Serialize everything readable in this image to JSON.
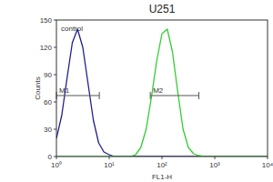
{
  "chart_data": {
    "type": "line",
    "title": "U251",
    "x_label": "FL1-H",
    "y_label": "Counts",
    "annotation": "control",
    "log": "x",
    "x": [
      1,
      1.26,
      1.58,
      2,
      2.51,
      3.16,
      3.98,
      5.01,
      6.31,
      7.94,
      10,
      12.6,
      15.8,
      20,
      25.1,
      31.6,
      39.8,
      50.1,
      63.1,
      79.4,
      100,
      126,
      158,
      200,
      251,
      316,
      398,
      501,
      631,
      794,
      1000,
      10000
    ],
    "series": [
      {
        "name": "control",
        "color": "#1f1f8f",
        "values": [
          20,
          45,
          85,
          125,
          140,
          120,
          80,
          40,
          15,
          5,
          2,
          0,
          0,
          0,
          0,
          0,
          0,
          0,
          0,
          0,
          0,
          0,
          0,
          0,
          0,
          0,
          0,
          0,
          0,
          0,
          0,
          0
        ]
      },
      {
        "name": "U251",
        "color": "#33cc33",
        "values": [
          0,
          0,
          0,
          0,
          0,
          0,
          0,
          0,
          0,
          0,
          0,
          0,
          0,
          0,
          0,
          2,
          10,
          30,
          65,
          105,
          135,
          140,
          115,
          70,
          30,
          10,
          3,
          1,
          0,
          0,
          0,
          0
        ]
      }
    ],
    "gates": [
      {
        "label": "M1",
        "x": [
          1,
          6.5
        ],
        "y": 67
      },
      {
        "label": "M2",
        "x": [
          60,
          500
        ],
        "y": 67
      }
    ],
    "xlim": [
      1,
      10000
    ],
    "xticks": [
      {
        "value": 1,
        "label": "10⁰"
      },
      {
        "value": 10,
        "label": "10¹"
      },
      {
        "value": 100,
        "label": "10²"
      },
      {
        "value": 1000,
        "label": "10³"
      },
      {
        "value": 10000,
        "label": "10⁴"
      }
    ],
    "ylim": [
      0,
      150
    ],
    "yticks": [
      0,
      30,
      60,
      90,
      120,
      150
    ]
  }
}
